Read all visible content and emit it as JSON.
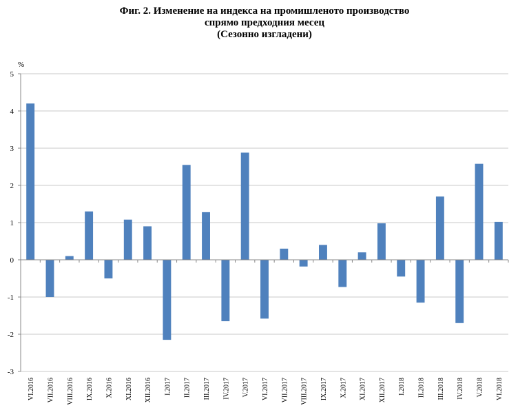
{
  "title_lines": [
    "Фиг. 2. Изменение на индекса на промишленото производство",
    "спрямо предходния месец",
    "(Сезонно изгладени)"
  ],
  "chart_data": {
    "type": "bar",
    "title": "Фиг. 2. Изменение на индекса на промишленото производство спрямо предходния месец (Сезонно изгладени)",
    "ylabel": "%",
    "xlabel": "",
    "ylim": [
      -3,
      5
    ],
    "yticks": [
      5,
      4,
      3,
      2,
      1,
      0,
      -1,
      -2,
      -3
    ],
    "grid": true,
    "legend": "none",
    "bar_color": "#4f81bd",
    "categories": [
      "VI.2016",
      "VII.2016",
      "VIII.2016",
      "IX.2016",
      "X.2016",
      "XI.2016",
      "XII.2016",
      "I.2017",
      "II.2017",
      "III.2017",
      "IV.2017",
      "V.2017",
      "VI.2017",
      "VII.2017",
      "VIII.2017",
      "IX.2017",
      "X.2017",
      "XI.2017",
      "XII.2017",
      "I.2018",
      "II.2018",
      "III.2018",
      "IV.2018",
      "V.2018",
      "VI.2018"
    ],
    "values": [
      4.2,
      -1.0,
      0.1,
      1.3,
      -0.5,
      1.08,
      0.9,
      -2.15,
      2.55,
      1.28,
      -1.65,
      2.88,
      -1.58,
      0.3,
      -0.18,
      0.4,
      -0.73,
      0.2,
      0.98,
      -0.45,
      -1.15,
      1.7,
      -1.7,
      2.58,
      1.02
    ]
  }
}
